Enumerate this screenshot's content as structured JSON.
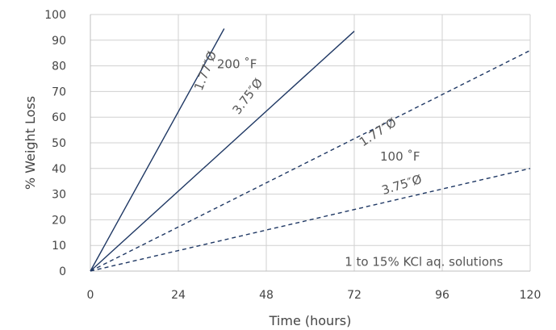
{
  "chart_data": {
    "type": "line",
    "xlabel": "Time (hours)",
    "ylabel": "% Weight Loss",
    "xlim": [
      0,
      120
    ],
    "ylim": [
      0,
      100
    ],
    "x_ticks": [
      "0",
      "24",
      "48",
      "72",
      "96",
      "120"
    ],
    "y_ticks": [
      "0",
      "10",
      "20",
      "30",
      "40",
      "50",
      "60",
      "70",
      "80",
      "90",
      "100"
    ],
    "grid": "vertical-and-horizontal",
    "series": [
      {
        "name": "",
        "dash": "solid",
        "color": "#1f3864",
        "x": [
          0,
          36.5
        ],
        "y": [
          0,
          94.5
        ]
      },
      {
        "name": "",
        "dash": "solid",
        "color": "#1f3864",
        "x": [
          0,
          72
        ],
        "y": [
          0,
          93.5
        ]
      },
      {
        "name": "",
        "dash": "dashed",
        "color": "#1f3864",
        "x": [
          0,
          120
        ],
        "y": [
          0,
          86
        ]
      },
      {
        "name": "",
        "dash": "dashed",
        "color": "#1f3864",
        "x": [
          0,
          120
        ],
        "y": [
          0,
          40
        ]
      }
    ],
    "annotations": [
      {
        "id": "ann-200f",
        "text": "200 ˚F",
        "x": 40,
        "y": 80.5,
        "angle": 0
      },
      {
        "id": "ann-177-solid",
        "text": "1.77″Ø",
        "x": 31.5,
        "y": 78,
        "angle": -69
      },
      {
        "id": "ann-375-solid",
        "text": "3.75″Ø",
        "x": 43,
        "y": 68,
        "angle": -53
      },
      {
        "id": "ann-177-dashed",
        "text": "1.77″Ø",
        "x": 78.5,
        "y": 54,
        "angle": -33
      },
      {
        "id": "ann-100f",
        "text": "100 ˚F",
        "x": 84.5,
        "y": 44.5,
        "angle": 0
      },
      {
        "id": "ann-375-dashed",
        "text": "3.75″Ø",
        "x": 85,
        "y": 33.5,
        "angle": -17
      },
      {
        "id": "ann-note",
        "text": "1 to 15% KCl aq. solutions",
        "x": 91,
        "y": 3.5,
        "angle": 0
      }
    ]
  }
}
